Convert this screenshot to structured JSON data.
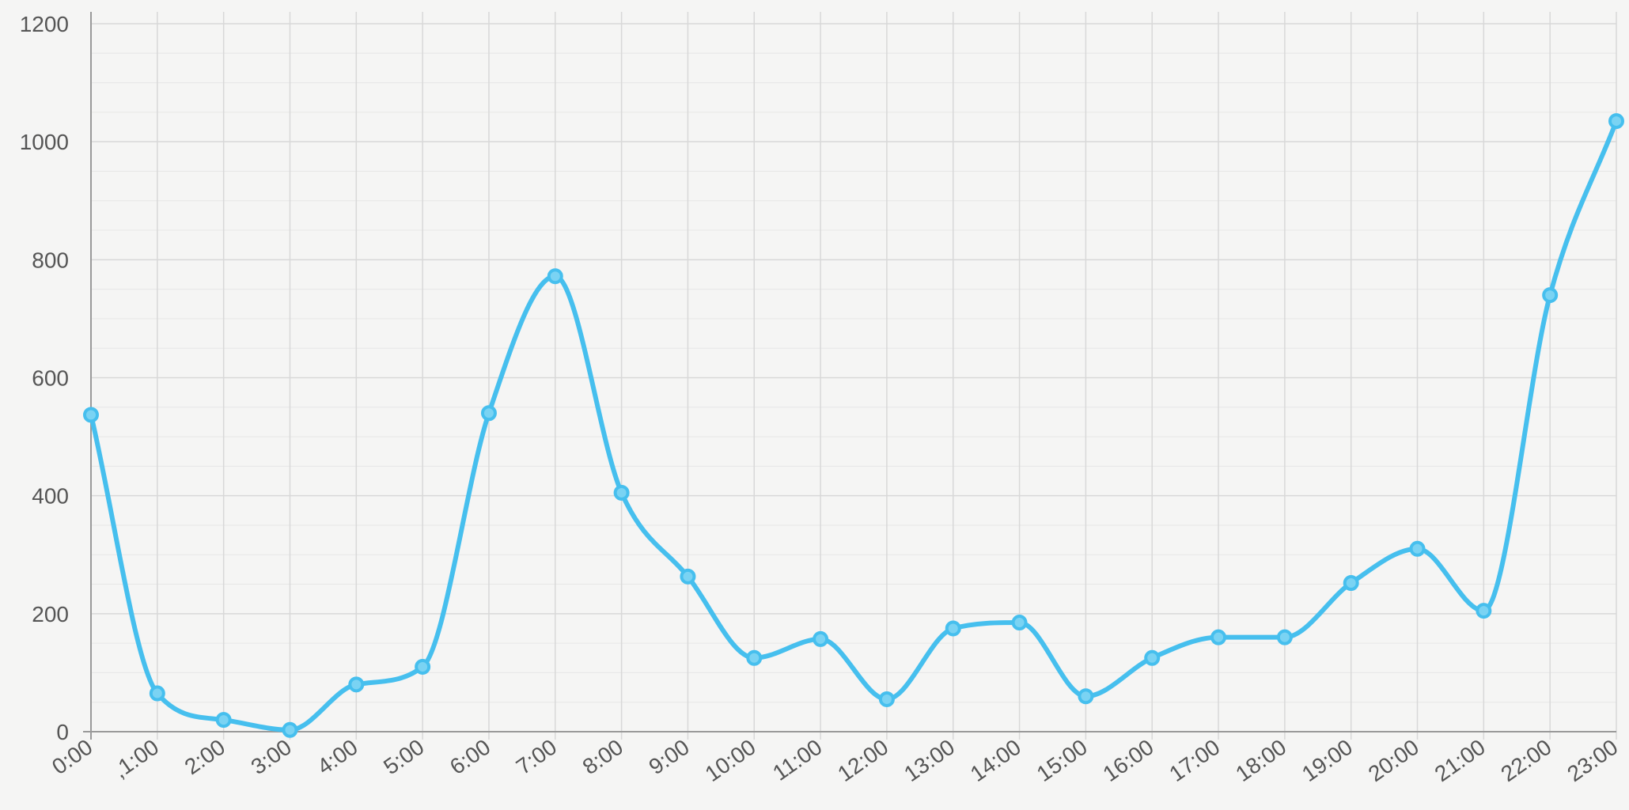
{
  "chart_data": {
    "type": "line",
    "title": "",
    "xlabel": "",
    "ylabel": "",
    "categories": [
      "0:00",
      ",1:00",
      "2:00",
      "3:00",
      "4:00",
      "5:00",
      "6:00",
      "7:00",
      "8:00",
      "9:00",
      "10:00",
      "11:00",
      "12:00",
      "13:00",
      "14:00",
      "15:00",
      "16:00",
      "17:00",
      "18:00",
      "19:00",
      "20:00",
      "21:00",
      "22:00",
      "23:00"
    ],
    "series": [
      {
        "values": [
          537,
          65,
          20,
          3,
          80,
          110,
          540,
          772,
          405,
          263,
          125,
          157,
          55,
          175,
          185,
          60,
          125,
          160,
          160,
          252,
          310,
          205,
          740,
          1035
        ]
      }
    ],
    "ylim": [
      0,
      1200
    ],
    "yticks": [
      "0",
      "200",
      "400",
      "600",
      "800",
      "1000",
      "1200"
    ],
    "grid": true,
    "legend": "none",
    "colors": {
      "line": "#46bfee",
      "grid": "#d8d8d8",
      "axis": "#9a9a9a",
      "text": "#555555",
      "background": "#f5f5f4"
    }
  }
}
